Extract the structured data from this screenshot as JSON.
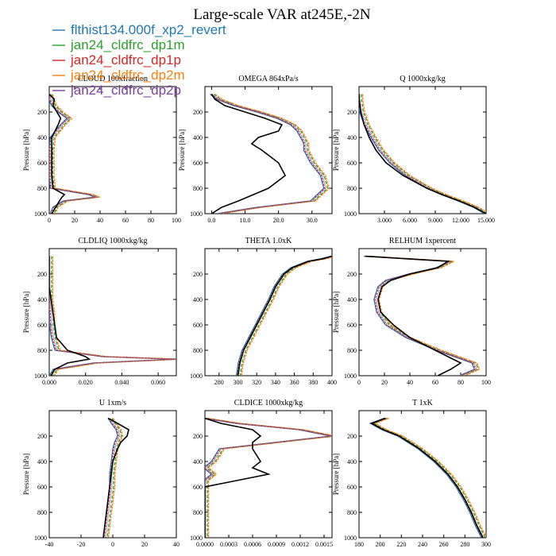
{
  "title": "Large-scale VAR at245E,-2N",
  "colors": {
    "flthist134.000f_xp2_revert": "#1f77b4",
    "jan24_cldfrc_dp1m": "#2ca02c",
    "jan24_cldfrc_dp1p": "#d62728",
    "jan24_cldfrc_dp2m": "#ff7f0e",
    "jan24_cldfrc_dp2p": "#7b3f9e",
    "obs": "#000000"
  },
  "legend": [
    {
      "label": "flthist134.000f_xp2_revert",
      "color": "#1f77b4"
    },
    {
      "label": "jan24_cldfrc_dp1m",
      "color": "#2ca02c"
    },
    {
      "label": "jan24_cldfrc_dp1p",
      "color": "#d62728"
    },
    {
      "label": "jan24_cldfrc_dp2m",
      "color": "#ff7f0e"
    },
    {
      "label": "jan24_cldfrc_dp2p",
      "color": "#7b3f9e"
    }
  ],
  "chart_data": [
    {
      "type": "line",
      "title": "CLOUD 100xfraction",
      "ylabel": "Pressure [hPa]",
      "xlim": [
        0,
        100
      ],
      "ylim": [
        1000,
        0
      ],
      "xticks": [
        0,
        20,
        40,
        60,
        80,
        100
      ],
      "xticklabels": [
        "0",
        "20",
        "40",
        "60",
        "80",
        "100"
      ],
      "yticks": [
        200,
        400,
        600,
        800,
        1000
      ],
      "p": [
        60,
        100,
        150,
        200,
        250,
        300,
        400,
        500,
        600,
        700,
        800,
        850,
        870,
        900,
        950,
        1000
      ],
      "series": [
        {
          "name": "black",
          "x": [
            0,
            4,
            3,
            6,
            9,
            7,
            2,
            2,
            2,
            2,
            3,
            12,
            10,
            8,
            5,
            2
          ]
        },
        {
          "name": "model",
          "x": [
            0,
            1,
            3,
            8,
            15,
            10,
            2,
            1,
            1,
            1,
            2,
            32,
            37,
            12,
            4,
            2
          ]
        }
      ]
    },
    {
      "type": "line",
      "title": "OMEGA 864xPa/s",
      "ylabel": "Pressure [hPa]",
      "xlim": [
        -2,
        36
      ],
      "ylim": [
        1000,
        0
      ],
      "xticks": [
        0,
        10,
        20,
        30
      ],
      "xticklabels": [
        "0.0",
        "10.0",
        "20.0",
        "30.0"
      ],
      "yticks": [
        200,
        400,
        600,
        800,
        1000
      ],
      "p": [
        60,
        100,
        150,
        200,
        250,
        300,
        350,
        400,
        450,
        500,
        600,
        700,
        800,
        900,
        950,
        1000
      ],
      "series": [
        {
          "name": "black",
          "x": [
            0,
            1,
            4,
            10,
            16,
            21,
            20,
            14,
            12,
            15,
            20,
            22,
            17,
            8,
            3,
            0
          ]
        },
        {
          "name": "model",
          "x": [
            0,
            2,
            7,
            14,
            20,
            24,
            26,
            27,
            28,
            28,
            30,
            33,
            34,
            30,
            14,
            2
          ]
        }
      ]
    },
    {
      "type": "line",
      "title": "Q 1000xkg/kg",
      "ylabel": "Pressure [hPa]",
      "xlim": [
        0,
        15
      ],
      "ylim": [
        1000,
        0
      ],
      "xticks": [
        3,
        6,
        9,
        12,
        15
      ],
      "xticklabels": [
        "3.000",
        "6.000",
        "9.000",
        "12.000",
        "15.000"
      ],
      "yticks": [
        200,
        400,
        600,
        800,
        1000
      ],
      "p": [
        60,
        100,
        200,
        300,
        400,
        500,
        600,
        700,
        800,
        850,
        900,
        950,
        1000
      ],
      "series": [
        {
          "name": "black",
          "x": [
            0.01,
            0.02,
            0.2,
            0.6,
            1.2,
            2.0,
            3.2,
            5.2,
            8.0,
            9.8,
            11.8,
            13.6,
            15.0
          ]
        },
        {
          "name": "model",
          "x": [
            0.01,
            0.02,
            0.25,
            0.8,
            1.6,
            2.5,
            3.8,
            5.6,
            8.2,
            9.9,
            11.9,
            13.7,
            15.0
          ]
        }
      ]
    },
    {
      "type": "line",
      "title": "CLDLIQ 1000xkg/kg",
      "ylabel": "Pressure [hPa]",
      "xlim": [
        0,
        0.07
      ],
      "ylim": [
        1000,
        0
      ],
      "xticks": [
        0,
        0.02,
        0.04,
        0.06
      ],
      "xticklabels": [
        "0.000",
        "0.020",
        "0.040",
        "0.060"
      ],
      "yticks": [
        200,
        400,
        600,
        800,
        1000
      ],
      "p": [
        60,
        300,
        400,
        500,
        600,
        700,
        800,
        850,
        870,
        900,
        950,
        1000
      ],
      "series": [
        {
          "name": "black",
          "x": [
            0,
            0,
            0.001,
            0.002,
            0.003,
            0.004,
            0.01,
            0.02,
            0.022,
            0.01,
            0.003,
            0.001
          ]
        },
        {
          "name": "model",
          "x": [
            0,
            0,
            0,
            0.001,
            0.001,
            0.002,
            0.004,
            0.03,
            0.07,
            0.025,
            0.003,
            0.001
          ]
        }
      ]
    },
    {
      "type": "line",
      "title": "THETA 1.0xK",
      "ylabel": "",
      "xlim": [
        265,
        400
      ],
      "ylim": [
        1000,
        0
      ],
      "xticks": [
        280,
        300,
        320,
        340,
        360,
        380,
        400
      ],
      "xticklabels": [
        "280",
        "300",
        "320",
        "340",
        "360",
        "380",
        "400"
      ],
      "yticks": [
        200,
        400,
        600,
        800,
        1000
      ],
      "p": [
        60,
        80,
        100,
        150,
        200,
        300,
        400,
        500,
        600,
        700,
        800,
        900,
        1000
      ],
      "series": [
        {
          "name": "black",
          "x": [
            400,
            390,
            375,
            358,
            349,
            340,
            334,
            327,
            320,
            313,
            306,
            302,
            300
          ]
        },
        {
          "name": "model",
          "x": [
            400,
            390,
            375,
            358,
            349,
            340,
            334,
            327,
            320,
            313,
            306,
            302,
            300
          ]
        }
      ]
    },
    {
      "type": "line",
      "title": "RELHUM 1xpercent",
      "ylabel": "Pressure [hPa]",
      "xlim": [
        0,
        100
      ],
      "ylim": [
        1000,
        0
      ],
      "xticks": [
        0,
        20,
        40,
        60,
        80,
        100
      ],
      "xticklabels": [
        "0",
        "20",
        "40",
        "60",
        "80",
        "100"
      ],
      "yticks": [
        200,
        400,
        600,
        800,
        1000
      ],
      "p": [
        60,
        100,
        150,
        200,
        250,
        300,
        400,
        500,
        600,
        700,
        800,
        900,
        950,
        1000
      ],
      "series": [
        {
          "name": "black",
          "x": [
            5,
            70,
            62,
            40,
            25,
            18,
            15,
            17,
            27,
            40,
            60,
            80,
            72,
            62
          ]
        },
        {
          "name": "model",
          "x": [
            5,
            72,
            62,
            40,
            22,
            16,
            13,
            15,
            22,
            38,
            62,
            90,
            92,
            80
          ]
        }
      ]
    },
    {
      "type": "line",
      "title": "U 1xm/s",
      "ylabel": "Pressure [hPa]",
      "xlim": [
        -40,
        40
      ],
      "ylim": [
        1000,
        0
      ],
      "xticks": [
        -40,
        -20,
        0,
        20,
        40
      ],
      "xticklabels": [
        "-40",
        "-20",
        "0",
        "20",
        "40"
      ],
      "yticks": [
        200,
        400,
        600,
        800,
        1000
      ],
      "p": [
        60,
        100,
        150,
        200,
        250,
        300,
        400,
        500,
        600,
        700,
        800,
        900,
        1000
      ],
      "series": [
        {
          "name": "black",
          "x": [
            -3,
            3,
            10,
            9,
            5,
            3,
            0,
            -1,
            -2,
            -3,
            -4,
            -5,
            -6
          ]
        },
        {
          "name": "model",
          "x": [
            -2,
            0,
            3,
            4,
            2,
            1,
            0,
            -1,
            -1,
            -2,
            -3,
            -4,
            -5
          ]
        }
      ]
    },
    {
      "type": "line",
      "title": "CLDICE 1000xkg/kg",
      "ylabel": "",
      "xlim": [
        0,
        0.0016
      ],
      "ylim": [
        1000,
        0
      ],
      "xticks": [
        0,
        0.0003,
        0.0006,
        0.0009,
        0.0012,
        0.0015
      ],
      "xticklabels": [
        "0.0000",
        "0.0003",
        "0.0006",
        "0.0009",
        "0.0012",
        "0.0015"
      ],
      "yticks": [
        200,
        400,
        600,
        800,
        1000
      ],
      "p": [
        60,
        100,
        150,
        200,
        250,
        300,
        400,
        450,
        500,
        550,
        600,
        700,
        1000
      ],
      "series": [
        {
          "name": "black",
          "x": [
            0,
            0.0002,
            0.0006,
            0.0007,
            0.0006,
            0.0006,
            0.0007,
            0.0006,
            0.0008,
            0.0004,
            0,
            0,
            0
          ]
        },
        {
          "name": "model",
          "x": [
            0,
            0.0004,
            0.0012,
            0.0016,
            0.0009,
            0.0002,
            0.0001,
            0,
            0.0001,
            0,
            0,
            0,
            0
          ]
        }
      ]
    },
    {
      "type": "line",
      "title": "T 1xK",
      "ylabel": "Pressure [hPa]",
      "xlim": [
        180,
        300
      ],
      "ylim": [
        1000,
        0
      ],
      "xticks": [
        180,
        200,
        220,
        240,
        260,
        280,
        300
      ],
      "xticklabels": [
        "180",
        "200",
        "220",
        "240",
        "260",
        "280",
        "300"
      ],
      "yticks": [
        200,
        400,
        600,
        800,
        1000
      ],
      "p": [
        60,
        100,
        150,
        200,
        300,
        400,
        500,
        600,
        700,
        800,
        900,
        1000
      ],
      "series": [
        {
          "name": "black",
          "x": [
            205,
            192,
            203,
            218,
            237,
            252,
            264,
            273,
            280,
            286,
            291,
            297
          ]
        },
        {
          "name": "model",
          "x": [
            205,
            192,
            203,
            218,
            237,
            252,
            264,
            273,
            280,
            286,
            291,
            297
          ]
        }
      ]
    }
  ]
}
